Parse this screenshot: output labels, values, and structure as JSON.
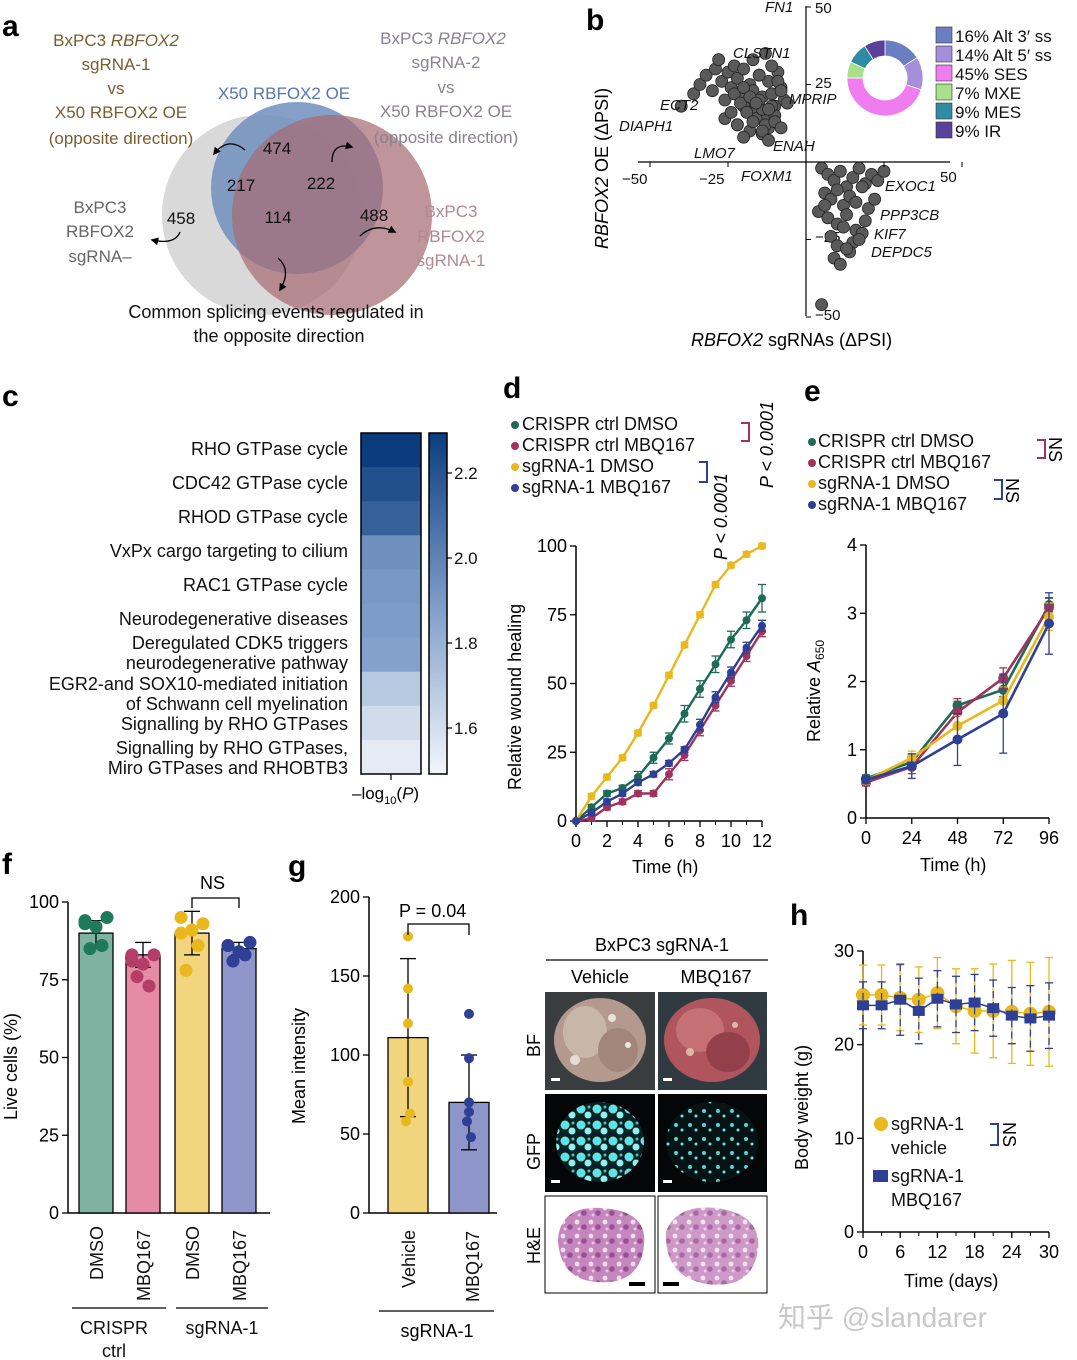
{
  "panels": {
    "a": {
      "letter": "a",
      "label_sg1": [
        "BxPC3 ",
        "RBFOX2",
        "sgRNA-1",
        "vs",
        "X50 RBFOX2 OE",
        "(opposite direction)"
      ],
      "label_sg2": [
        "BxPC3 ",
        "RBFOX2",
        "sgRNA-2",
        "vs",
        "X50 RBFOX2 OE",
        "(opposite direction)"
      ],
      "label_oe": "X50 RBFOX2 OE",
      "label_sgneg": [
        "BxPC3",
        "RBFOX2",
        "sgRNA–"
      ],
      "label_bx_sg1": [
        "BxPC3",
        "RBFOX2",
        "sgRNA-1"
      ],
      "counts": {
        "grey_only": "458",
        "grey_blue": "217",
        "blue_only": "474",
        "blue_red": "222",
        "all": "114",
        "red_only": "488"
      },
      "caption": [
        "Common splicing events regulated in",
        "the opposite direction"
      ],
      "colors": {
        "grey": "#d9d9d9",
        "blue": "#6f8fbd",
        "red": "#b9868d",
        "sg1_text": "#9b7a3f",
        "sg2_text": "#8a8290",
        "bxsg1_text": "#b18a8f"
      }
    },
    "b": {
      "letter": "b",
      "ylabel": [
        "RBFOX2",
        " OE (ΔPSI)"
      ],
      "xlabel": [
        "RBFOX2",
        " sgRNAs (ΔPSI)"
      ],
      "xticks": [
        "−50",
        "−25",
        "25",
        "50"
      ],
      "yticks": [
        "50",
        "25",
        "−25",
        "−50"
      ],
      "genes": [
        "FN1",
        "CLSTN1",
        "ECT2",
        "MPRIP",
        "DIAPH1",
        "LMO7",
        "ENAH",
        "FOXM1",
        "EXOC1",
        "PPP3CB",
        "KIF7",
        "DEPDC5"
      ],
      "legend": [
        "16% Alt 3′ ss",
        "14% Alt 5′ ss",
        "45% SES",
        "7% MXE",
        "9% MES",
        "9% IR"
      ],
      "donut_colors": [
        "#6a7fc1",
        "#a58fdb",
        "#f07df0",
        "#a9e08a",
        "#2f8aa3",
        "#5a3f9b"
      ]
    },
    "c": {
      "letter": "c",
      "xlabel": "–log10(P)",
      "colorbar_ticks": [
        "2.2",
        "2.0",
        "1.8",
        "1.6"
      ]
    },
    "d": {
      "letter": "d",
      "legend": [
        "CRISPR ctrl DMSO",
        "CRISPR ctrl MBQ167",
        "sgRNA-1 DMSO",
        "sgRNA-1 MBQ167"
      ],
      "p1": "P < 0.0001",
      "p2": "P < 0.0001",
      "ylabel": "Relative wound healing",
      "xlabel": "Time (h)"
    },
    "e": {
      "letter": "e",
      "legend": [
        "CRISPR ctrl DMSO",
        "CRISPR ctrl MBQ167",
        "sgRNA-1 DMSO",
        "sgRNA-1 MBQ167"
      ],
      "ns1": "NS",
      "ns2": "NS",
      "ylabel": "Relative A650",
      "xlabel": "Time (h)"
    },
    "f": {
      "letter": "f",
      "ylabel": "Live cells (%)",
      "xticks": [
        "DMSO",
        "MBQ167",
        "DMSO",
        "MBQ167"
      ],
      "groups": [
        [
          "CRISPR",
          "ctrl"
        ],
        [
          "sgRNA-1"
        ]
      ],
      "ns": "NS"
    },
    "g": {
      "letter": "g",
      "ylabel": "Mean intensity",
      "xticks": [
        "Vehicle",
        "MBQ167"
      ],
      "group": "sgRNA-1",
      "pvalue": "P = 0.04",
      "img_title": "BxPC3 sgRNA-1",
      "img_cols": [
        "Vehicle",
        "MBQ167"
      ],
      "img_rows": [
        "BF",
        "GFP",
        "H&E"
      ]
    },
    "h": {
      "letter": "h",
      "ylabel": "Body weight (g)",
      "xlabel": "Time (days)",
      "legend": [
        [
          "sgRNA-1",
          "vehicle"
        ],
        [
          "sgRNA-1",
          "MBQ167"
        ]
      ],
      "ns": "NS"
    }
  },
  "watermark": "知乎 @slandarer",
  "chart_data": [
    {
      "panel": "b",
      "type": "scatter",
      "xlabel": "RBFOX2 sgRNAs (ΔPSI)",
      "ylabel": "RBFOX2 OE (ΔPSI)",
      "xlim": [
        -50,
        50
      ],
      "ylim": [
        -50,
        50
      ],
      "x": [
        -40,
        -36,
        -34,
        -32,
        -30,
        -29,
        -28,
        -27,
        -26,
        -25,
        -24,
        -23,
        -22,
        -21,
        -20,
        -19,
        -18,
        -17,
        -16,
        -15,
        -14,
        -13,
        -12,
        -11,
        -10,
        -9,
        -8,
        -7,
        -26,
        -24,
        -22,
        -20,
        -18,
        -16,
        -14,
        -12,
        -10,
        -23,
        -21,
        -19,
        -17,
        -15,
        -13,
        -11,
        -20,
        -18,
        -16,
        -14,
        -12,
        -10,
        -8,
        -17,
        -15,
        -13,
        -11,
        -9,
        -22,
        -20,
        -14,
        -12,
        -8,
        -6,
        5,
        7,
        9,
        11,
        13,
        15,
        17,
        19,
        21,
        23,
        25,
        6,
        8,
        10,
        12,
        14,
        16,
        18,
        20,
        22,
        4,
        7,
        10,
        13,
        16,
        19,
        8,
        12,
        15,
        18,
        6,
        10,
        14,
        17,
        9,
        13,
        11,
        5
      ],
      "y": [
        18,
        22,
        25,
        28,
        23,
        30,
        33,
        26,
        20,
        29,
        24,
        31,
        27,
        22,
        30,
        19,
        25,
        23,
        17,
        28,
        21,
        15,
        26,
        22,
        18,
        29,
        24,
        20,
        14,
        16,
        12,
        18,
        10,
        14,
        17,
        11,
        15,
        22,
        19,
        16,
        13,
        20,
        12,
        18,
        24,
        21,
        19,
        9,
        17,
        13,
        11,
        33,
        28,
        35,
        31,
        26,
        12,
        8,
        10,
        7,
        23,
        19,
        -2,
        -4,
        -6,
        -3,
        -8,
        -5,
        -2,
        -7,
        -4,
        -6,
        -3,
        -10,
        -12,
        -9,
        -14,
        -11,
        -13,
        -8,
        -15,
        -12,
        -16,
        -18,
        -20,
        -17,
        -22,
        -19,
        -24,
        -21,
        -26,
        -23,
        -14,
        -27,
        -29,
        -25,
        -31,
        -28,
        -33,
        -46
      ]
    },
    {
      "panel": "b-inset",
      "type": "pie",
      "categories": [
        "Alt 3′ ss",
        "Alt 5′ ss",
        "SES",
        "MXE",
        "MES",
        "IR"
      ],
      "values": [
        16,
        14,
        45,
        7,
        9,
        9
      ]
    },
    {
      "panel": "c",
      "type": "heatmap",
      "categories": [
        "RHO GTPase cycle",
        "CDC42 GTPase cycle",
        "RHOD GTPase cycle",
        "VxPx cargo targeting to cilium",
        "RAC1 GTPase cycle",
        "Neurodegenerative diseases",
        "Deregulated CDK5 triggers\nneurodegenerative pathway",
        "EGR2-and SOX10-mediated initiation\nof Schwann cell myelination",
        "Signalling by RHO GTPases",
        "Signalling by RHO GTPases,\nMiro GTPases and RHOBTB3"
      ],
      "values": [
        2.3,
        2.22,
        2.15,
        1.95,
        1.92,
        1.9,
        1.88,
        1.7,
        1.62,
        1.55
      ],
      "xlabel": "–log10(P)",
      "colorbar": [
        1.5,
        2.3
      ]
    },
    {
      "panel": "d",
      "type": "line",
      "x": [
        0,
        1,
        2,
        3,
        4,
        5,
        6,
        7,
        8,
        9,
        10,
        11,
        12
      ],
      "xlabel": "Time (h)",
      "ylabel": "Relative wound healing",
      "ylim": [
        0,
        100
      ],
      "series": [
        {
          "name": "CRISPR ctrl DMSO",
          "color": "#1e6b55",
          "values": [
            0,
            5,
            10,
            12,
            16,
            23,
            30,
            39,
            48,
            57,
            66,
            73,
            81
          ],
          "err": [
            0,
            1,
            1,
            1,
            2,
            2,
            2,
            3,
            3,
            3,
            3,
            3,
            5
          ]
        },
        {
          "name": "CRISPR ctrl MBQ167",
          "color": "#a0325c",
          "values": [
            0,
            1,
            5,
            7,
            10,
            10,
            17,
            24,
            33,
            42,
            51,
            60,
            69
          ],
          "err": [
            0,
            1,
            1,
            1,
            1,
            1,
            2,
            2,
            2,
            2,
            2,
            2,
            2
          ]
        },
        {
          "name": "sgRNA-1 DMSO",
          "color": "#e8b81c",
          "values": [
            0,
            9,
            16,
            23,
            32,
            42,
            53,
            64,
            75,
            86,
            93,
            97,
            100
          ],
          "err": [
            0,
            1,
            1,
            1,
            1,
            1,
            1,
            1,
            1,
            1,
            1,
            1,
            1
          ]
        },
        {
          "name": "sgRNA-1 MBQ167",
          "color": "#2e3f96",
          "values": [
            0,
            3,
            7,
            10,
            14,
            17,
            21,
            26,
            35,
            45,
            54,
            63,
            71
          ],
          "err": [
            0,
            1,
            1,
            1,
            1,
            1,
            1,
            1,
            2,
            2,
            2,
            2,
            2
          ]
        }
      ]
    },
    {
      "panel": "e",
      "type": "line",
      "x": [
        0,
        24,
        48,
        72,
        96
      ],
      "xlabel": "Time (h)",
      "ylabel": "Relative A650",
      "ylim": [
        0,
        4
      ],
      "series": [
        {
          "name": "CRISPR ctrl DMSO",
          "color": "#1e6b55",
          "values": [
            0.58,
            0.82,
            1.65,
            1.88,
            3.12
          ],
          "err": [
            0.05,
            0.1,
            0.06,
            0.1,
            0.1
          ]
        },
        {
          "name": "CRISPR ctrl MBQ167",
          "color": "#a0325c",
          "values": [
            0.52,
            0.75,
            1.55,
            2.05,
            3.08
          ],
          "err": [
            0.05,
            0.1,
            0.2,
            0.15,
            0.15
          ]
        },
        {
          "name": "sgRNA-1 DMSO",
          "color": "#e8b81c",
          "values": [
            0.55,
            0.88,
            1.35,
            1.72,
            2.95
          ],
          "err": [
            0.05,
            0.1,
            0.15,
            0.2,
            0.2
          ]
        },
        {
          "name": "sgRNA-1 MBQ167",
          "color": "#2e3f96",
          "values": [
            0.56,
            0.76,
            1.15,
            1.53,
            2.85
          ],
          "err": [
            0.05,
            0.18,
            0.38,
            0.58,
            0.45
          ]
        }
      ]
    },
    {
      "panel": "f",
      "type": "bar",
      "categories": [
        "DMSO",
        "MBQ167",
        "DMSO",
        "MBQ167"
      ],
      "values": [
        90,
        83,
        90,
        85
      ],
      "err": [
        4,
        4,
        7,
        2
      ],
      "colors": [
        "#7fb2a1",
        "#e58ba6",
        "#f2d57e",
        "#8d95c9"
      ],
      "points": [
        [
          94,
          92,
          95,
          85,
          86,
          93
        ],
        [
          83,
          80,
          83,
          76,
          73,
          81
        ],
        [
          95,
          91,
          93,
          78,
          86,
          90
        ],
        [
          86,
          84,
          87,
          81,
          83,
          86
        ]
      ],
      "point_colors": [
        "#1e7a5b",
        "#b43e68",
        "#e8b81c",
        "#2e3f96"
      ],
      "ylabel": "Live cells (%)",
      "ylim": [
        0,
        100
      ]
    },
    {
      "panel": "g",
      "type": "bar",
      "categories": [
        "Vehicle",
        "MBQ167"
      ],
      "values": [
        111,
        70
      ],
      "err": [
        50,
        30
      ],
      "colors": [
        "#f0d47e",
        "#8d95c9"
      ],
      "points": [
        [
          175,
          142,
          120,
          83,
          58,
          63
        ],
        [
          126,
          98,
          70,
          64,
          58,
          48
        ]
      ],
      "point_colors": [
        "#e8b81c",
        "#2e3f96"
      ],
      "ylabel": "Mean intensity",
      "ylim": [
        0,
        200
      ]
    },
    {
      "panel": "h",
      "type": "line",
      "x": [
        0,
        3,
        6,
        9,
        12,
        15,
        18,
        21,
        24,
        27,
        30
      ],
      "xlabel": "Time (days)",
      "ylabel": "Body weight (g)",
      "ylim": [
        0,
        30
      ],
      "series": [
        {
          "name": "sgRNA-1 vehicle",
          "color": "#e8b81c",
          "values": [
            25.3,
            25.3,
            25,
            24.8,
            25.5,
            24.1,
            23.6,
            23.6,
            23.5,
            23.3,
            23.5
          ],
          "err": [
            3.2,
            3.2,
            3.5,
            3.5,
            3.8,
            4,
            4.5,
            5,
            5.5,
            5.5,
            5.8
          ]
        },
        {
          "name": "sgRNA-1 MBQ167",
          "color": "#2e3f96",
          "values": [
            24.2,
            24.2,
            24.8,
            23.6,
            24.9,
            24.3,
            24.5,
            23.9,
            23.1,
            22.8,
            23.1
          ],
          "err": [
            2.5,
            2.5,
            3.8,
            3.5,
            3,
            3,
            3,
            3,
            3,
            3.5,
            3.5
          ]
        }
      ]
    }
  ]
}
